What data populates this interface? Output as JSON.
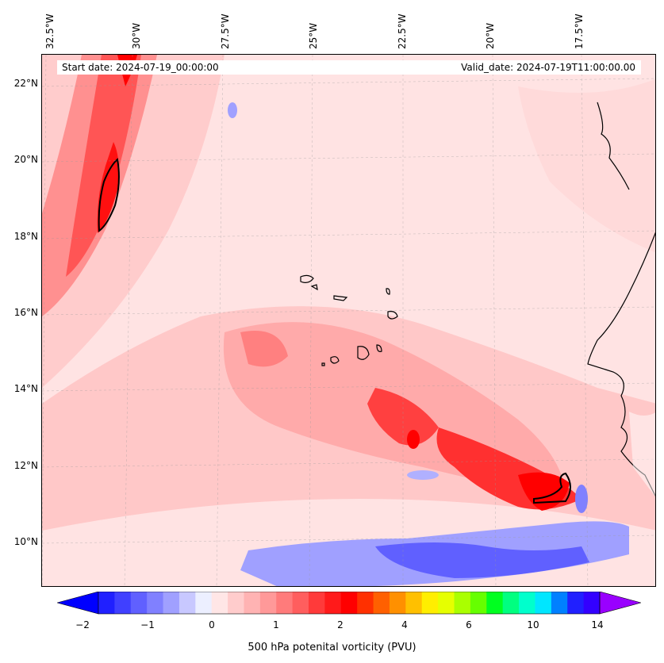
{
  "map": {
    "start_date": "Start date: 2024-07-19_00:00:00",
    "valid_date": "Valid_date: 2024-07-19T11:00:00.00",
    "lon_labels": [
      "32.5°W",
      "30°W",
      "27.5°W",
      "25°W",
      "22.5°W",
      "20°W",
      "17.5°W"
    ],
    "lat_labels": [
      "22°N",
      "20°N",
      "18°N",
      "16°N",
      "14°N",
      "12°N",
      "10°N"
    ],
    "region": "Cabo Verde islands and West African coast"
  },
  "colorbar": {
    "ticks": [
      "−2",
      "−1",
      "0",
      "1",
      "2",
      "4",
      "6",
      "10",
      "14"
    ],
    "label": "500 hPa potenital vorticity (PVU)",
    "colors": [
      "#0000ff",
      "#2020ff",
      "#4040ff",
      "#6060ff",
      "#8080ff",
      "#a0a0ff",
      "#c8c8ff",
      "#ecefff",
      "#ffe6e6",
      "#ffcccc",
      "#ffb3b3",
      "#ff9999",
      "#ff7b7b",
      "#ff5e5e",
      "#ff3a3a",
      "#ff1a1a",
      "#ff0000",
      "#ff3000",
      "#ff6000",
      "#ff9000",
      "#ffc000",
      "#ffee00",
      "#e6ff00",
      "#aaff00",
      "#66ff00",
      "#00ff20",
      "#00ff80",
      "#00ffcc",
      "#00e6ff",
      "#0080ff",
      "#2020ff",
      "#3300ff",
      "#9900ff"
    ]
  }
}
